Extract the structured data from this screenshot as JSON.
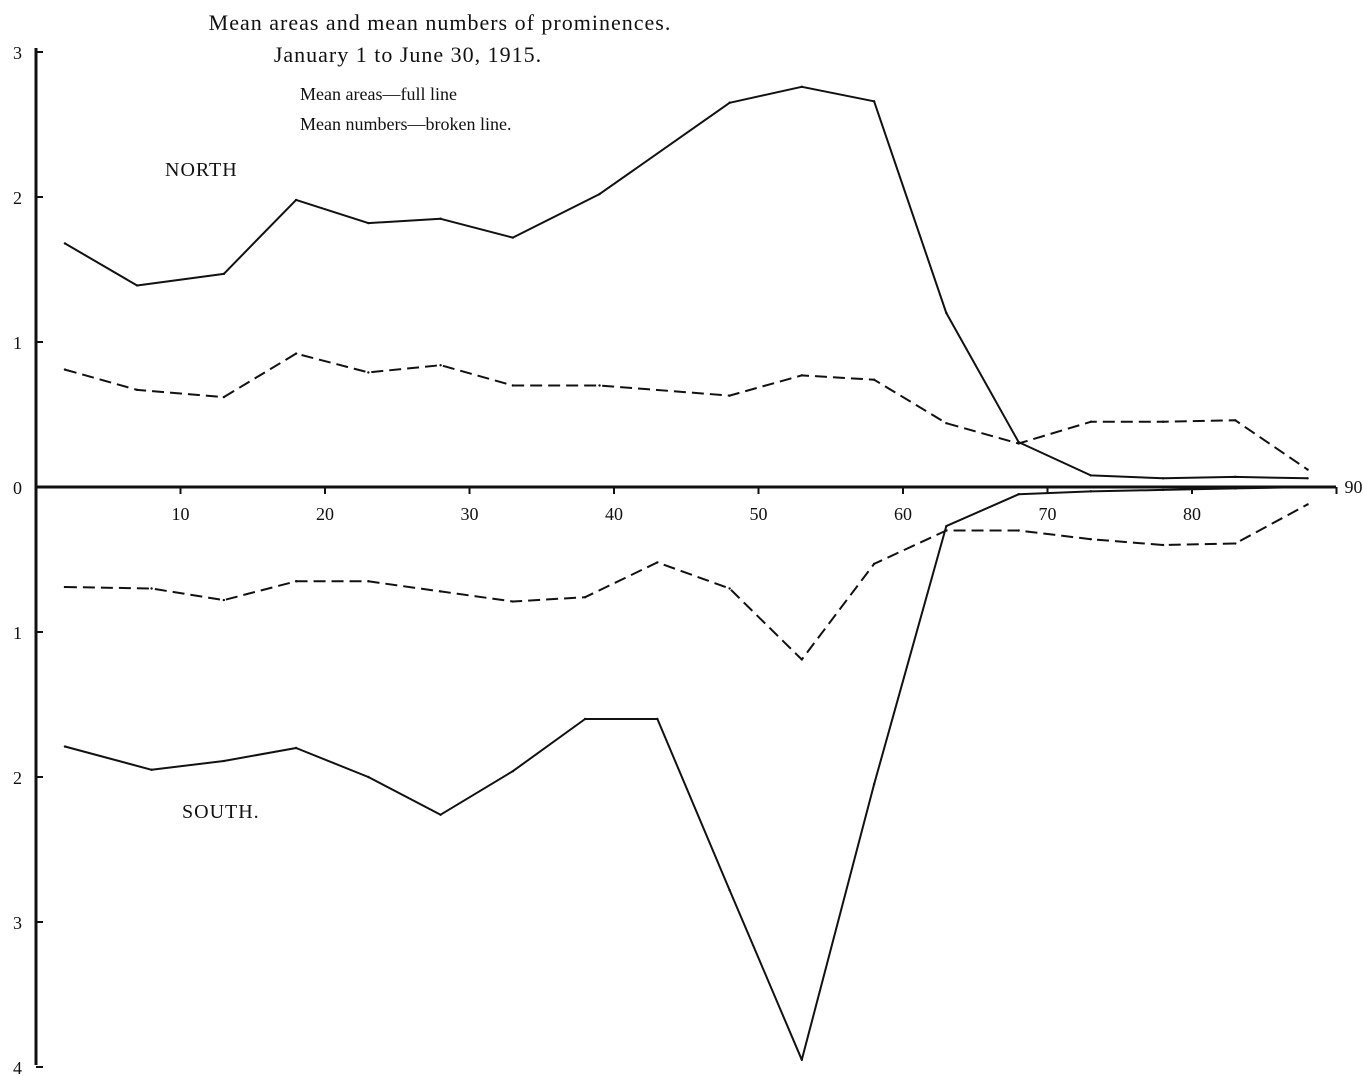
{
  "chart_data": {
    "type": "line",
    "title": "Mean areas and mean numbers of prominences.",
    "subtitle": "January 1 to June 30, 1915.",
    "legend": [
      "Mean areas—full line",
      "Mean numbers—broken line."
    ],
    "regions": {
      "north": "NORTH",
      "south": "SOUTH."
    },
    "xlim": [
      0,
      90
    ],
    "x_ticks": [
      10,
      20,
      30,
      40,
      50,
      60,
      70,
      80,
      90
    ],
    "y_ticks_north": [
      0,
      1,
      2,
      3
    ],
    "y_ticks_south": [
      1,
      2,
      3,
      4
    ],
    "y_tick_labels_north": [
      "0",
      "1",
      "2",
      "3"
    ],
    "y_tick_labels_south": [
      "1",
      "2",
      "3",
      "4"
    ],
    "series": [
      {
        "name": "North mean areas",
        "hemisphere": "north",
        "style": "full",
        "x": [
          2,
          7,
          13,
          18,
          23,
          28,
          33,
          39,
          48,
          53,
          58,
          63,
          68,
          73,
          78,
          83,
          88
        ],
        "y": [
          1.68,
          1.39,
          1.47,
          1.98,
          1.82,
          1.85,
          1.72,
          2.02,
          2.65,
          2.76,
          2.66,
          1.2,
          0.31,
          0.08,
          0.06,
          0.07,
          0.06
        ]
      },
      {
        "name": "North mean numbers",
        "hemisphere": "north",
        "style": "broken",
        "x": [
          2,
          7,
          13,
          18,
          23,
          28,
          33,
          39,
          48,
          53,
          58,
          63,
          68,
          73,
          78,
          83,
          88
        ],
        "y": [
          0.81,
          0.67,
          0.62,
          0.92,
          0.79,
          0.84,
          0.7,
          0.7,
          0.63,
          0.77,
          0.74,
          0.44,
          0.3,
          0.45,
          0.45,
          0.46,
          0.12
        ]
      },
      {
        "name": "South mean areas",
        "hemisphere": "south",
        "style": "full",
        "x": [
          2,
          8,
          13,
          18,
          23,
          28,
          33,
          38,
          43,
          48,
          53,
          58,
          63,
          68,
          73,
          78,
          83,
          88
        ],
        "y": [
          1.79,
          1.95,
          1.89,
          1.8,
          2.0,
          2.26,
          1.96,
          1.6,
          1.6,
          2.78,
          3.95,
          2.05,
          0.27,
          0.05,
          0.03,
          0.02,
          0.01,
          0.0
        ]
      },
      {
        "name": "South mean numbers",
        "hemisphere": "south",
        "style": "broken",
        "x": [
          2,
          8,
          13,
          18,
          23,
          28,
          33,
          38,
          43,
          48,
          53,
          58,
          63,
          68,
          73,
          78,
          83,
          88
        ],
        "y": [
          0.69,
          0.7,
          0.78,
          0.65,
          0.65,
          0.72,
          0.79,
          0.76,
          0.52,
          0.7,
          1.19,
          0.53,
          0.3,
          0.3,
          0.36,
          0.4,
          0.39,
          0.12
        ]
      }
    ]
  }
}
